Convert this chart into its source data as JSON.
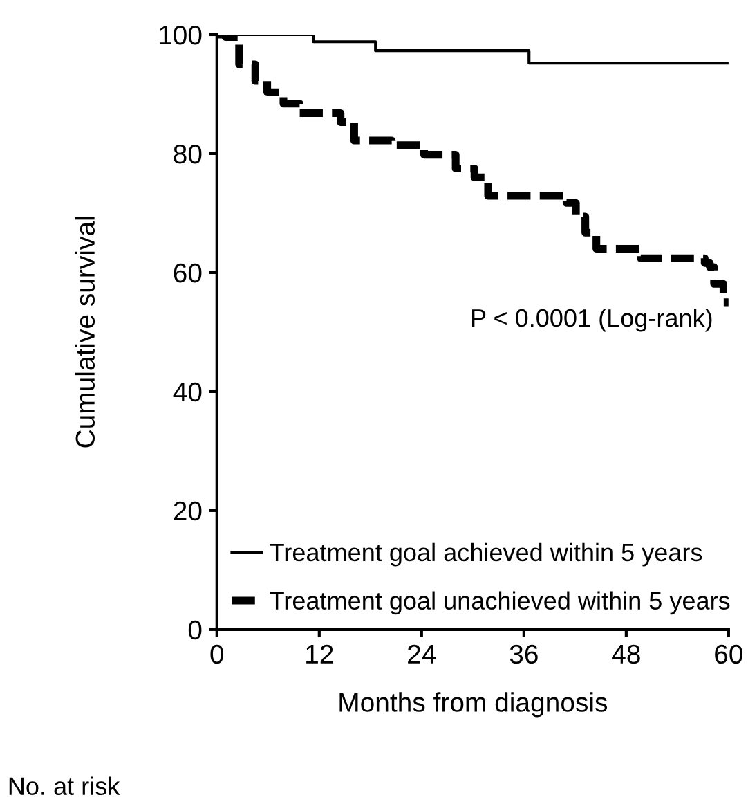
{
  "chart_data": {
    "type": "step",
    "xlabel": "Months from diagnosis",
    "ylabel": "Cumulative survival",
    "xlim": [
      0,
      60
    ],
    "xticks": [
      0,
      12,
      24,
      36,
      48,
      60
    ],
    "ylim": [
      0,
      100
    ],
    "yticks": [
      0,
      20,
      40,
      60,
      80,
      100
    ],
    "grid": false,
    "legend": "bottom left",
    "annotations": [
      "P < 0.0001 (Log-rank)",
      "No. at risk"
    ],
    "series": [
      {
        "name": "Treatment goal achieved within 5 years",
        "color": "#000000",
        "line_style": "solid",
        "x": [
          0,
          11.3,
          18.6,
          36.6,
          60
        ],
        "values": [
          100,
          98.8,
          97.3,
          95.2,
          95.2
        ]
      },
      {
        "name": "Treatment goal unachieved within 5 years",
        "color": "#000000",
        "line_style": "dashed",
        "x": [
          0,
          1.0,
          2.6,
          4.5,
          5.9,
          7.8,
          9.7,
          14.5,
          16.1,
          20.5,
          24.3,
          28.0,
          30.2,
          31.8,
          41.0,
          42.1,
          43.2,
          44.5,
          49.7,
          57.2,
          57.8,
          58.3,
          59.4,
          60
        ],
        "values": [
          100,
          99.6,
          95,
          92.2,
          90.3,
          88.4,
          86.8,
          85.3,
          82.2,
          81.4,
          79.8,
          77.5,
          76.0,
          72.9,
          71.7,
          69.4,
          66.7,
          64,
          62.4,
          61.6,
          60.9,
          58.1,
          55.0,
          55.0
        ]
      }
    ]
  }
}
